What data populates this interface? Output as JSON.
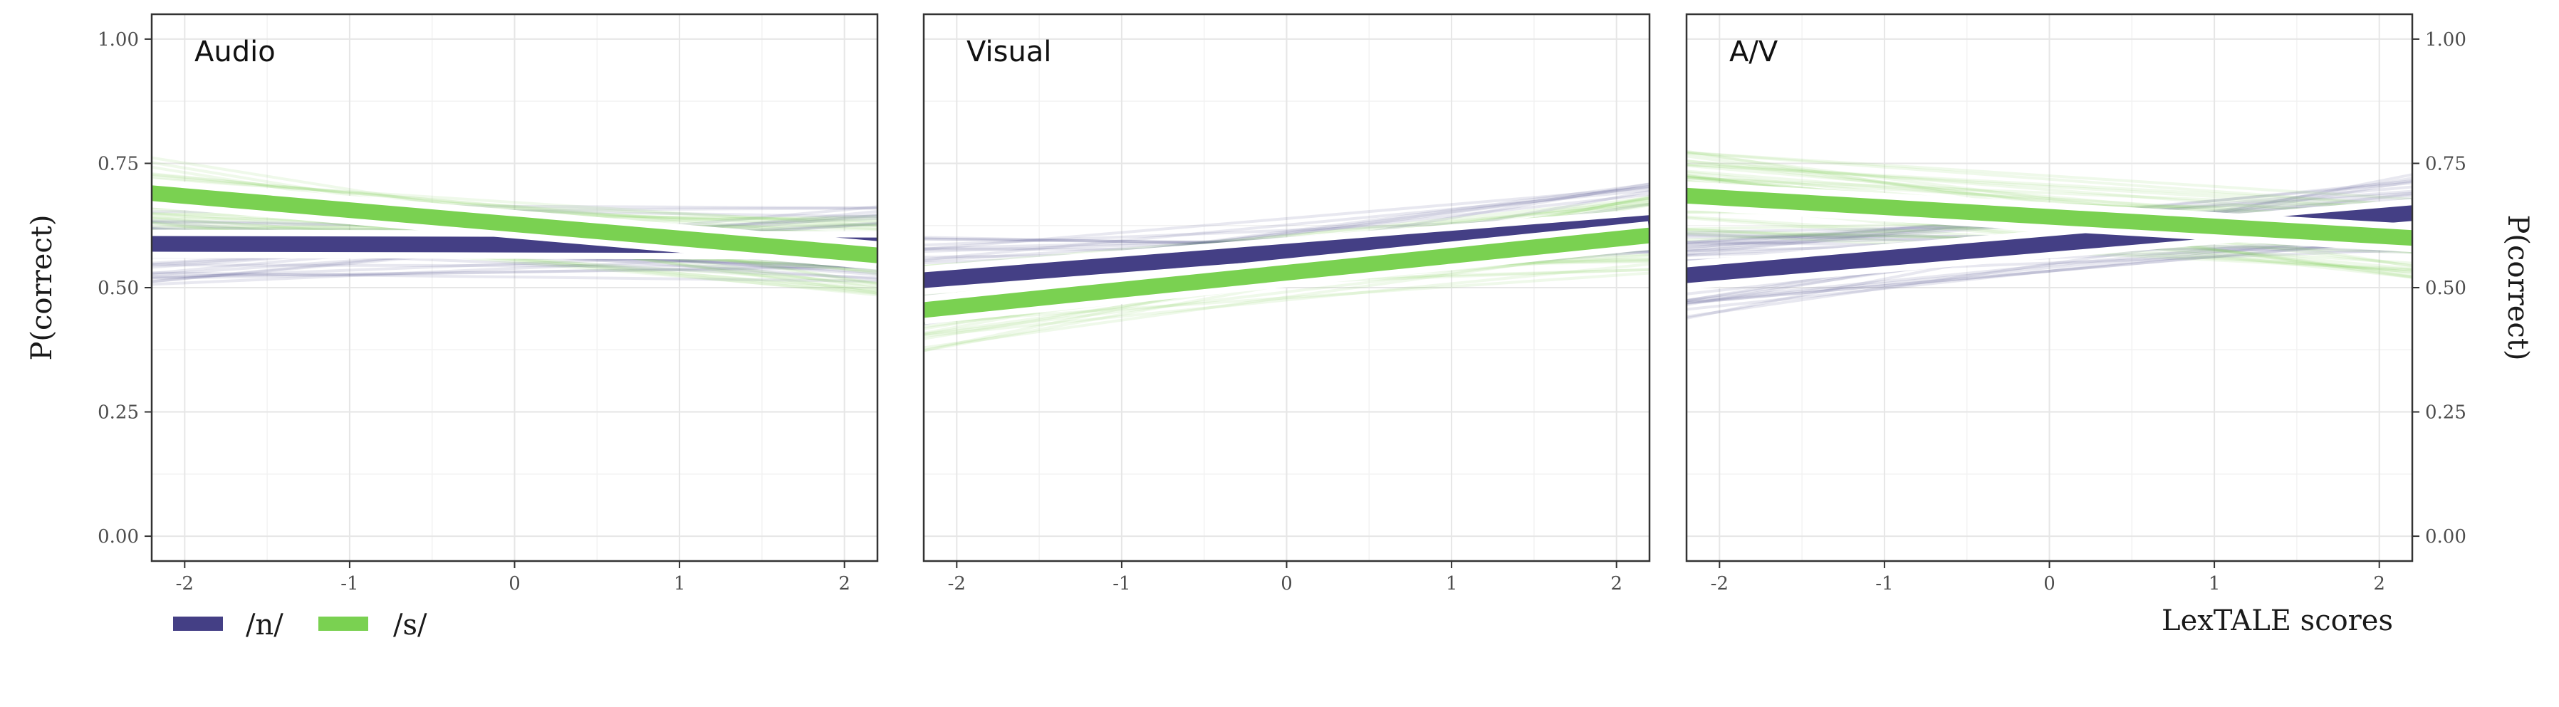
{
  "chart_data": {
    "type": "line",
    "ylabel": "P(correct)",
    "xlabel": "LexTALE scores",
    "xlim": [
      -2.2,
      2.2
    ],
    "ylim": [
      -0.05,
      1.05
    ],
    "x_ticks": [
      -2,
      -1,
      0,
      1,
      2
    ],
    "x_tick_labels": [
      "-2",
      "-1",
      "0",
      "1",
      "2"
    ],
    "y_ticks": [
      0,
      0.25,
      0.5,
      0.75,
      1.0
    ],
    "y_tick_labels": [
      "0.00",
      "0.25",
      "0.50",
      "0.75",
      "1.00"
    ],
    "grid": true,
    "legend": {
      "position": "bottom-left",
      "entries": [
        {
          "label": "/n/",
          "color": "#443F85"
        },
        {
          "label": "/s/",
          "color": "#7AD151"
        }
      ]
    },
    "panels": [
      {
        "title": "Audio",
        "series": [
          {
            "name": "/n/",
            "color": "#443F85",
            "x": [
              -2.2,
              2.2
            ],
            "y": [
              0.588,
              0.585
            ]
          },
          {
            "name": "/s/",
            "color": "#7AD151",
            "x": [
              -2.2,
              2.2
            ],
            "y": [
              0.69,
              0.565
            ]
          }
        ]
      },
      {
        "title": "Visual",
        "series": [
          {
            "name": "/n/",
            "color": "#443F85",
            "x": [
              -2.2,
              2.2
            ],
            "y": [
              0.515,
              0.63
            ]
          },
          {
            "name": "/s/",
            "color": "#7AD151",
            "x": [
              -2.2,
              2.2
            ],
            "y": [
              0.455,
              0.605
            ]
          }
        ]
      },
      {
        "title": "A/V",
        "series": [
          {
            "name": "/n/",
            "color": "#443F85",
            "x": [
              -2.2,
              2.2
            ],
            "y": [
              0.525,
              0.65
            ]
          },
          {
            "name": "/s/",
            "color": "#7AD151",
            "x": [
              -2.2,
              2.2
            ],
            "y": [
              0.685,
              0.6
            ]
          }
        ]
      }
    ]
  }
}
